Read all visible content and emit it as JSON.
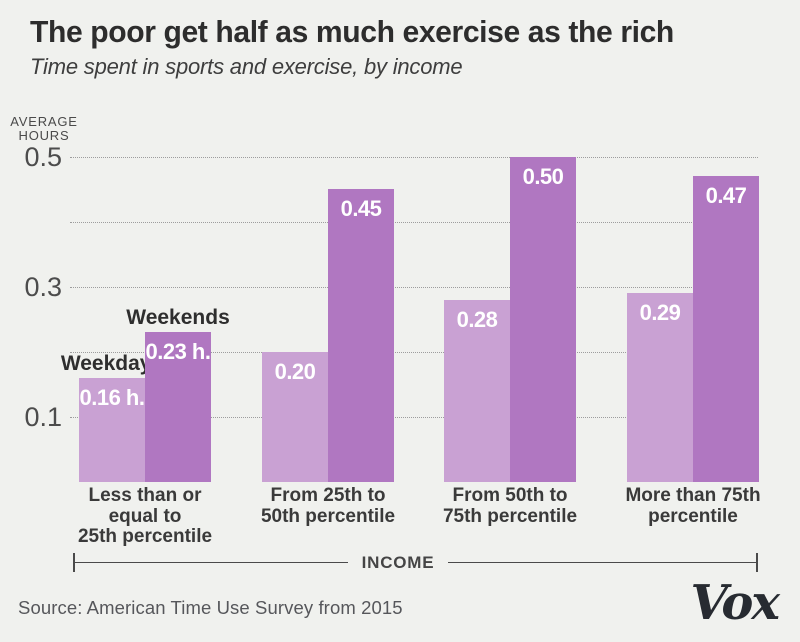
{
  "header": {
    "title": "The poor get half as much exercise as the rich",
    "subtitle": "Time spent in sports and exercise, by income"
  },
  "chart_data": {
    "type": "bar",
    "title": "The poor get half as much exercise as the rich",
    "subtitle": "Time spent in sports and exercise, by income",
    "ylabel": "AVERAGE HOURS",
    "ylabel_lines": [
      "AVERAGE",
      "HOURS"
    ],
    "xlabel": "INCOME",
    "ylim": [
      0,
      0.5
    ],
    "yticks_labeled": [
      0.5,
      0.3,
      0.1
    ],
    "gridlines": [
      0.1,
      0.2,
      0.3,
      0.4,
      0.5
    ],
    "grid_style": "dotted",
    "legend_position": "above-first-group-bars",
    "categories": [
      "Less than or equal to 25th percentile",
      "From 25th to 50th percentile",
      "From 50th to 75th percentile",
      "More than 75th percentile"
    ],
    "categories_lines": [
      [
        "Less than or",
        "equal to",
        "25th percentile"
      ],
      [
        "From 25th to",
        "50th percentile"
      ],
      [
        "From 50th to",
        "75th percentile"
      ],
      [
        "More than 75th",
        "percentile"
      ]
    ],
    "series": [
      {
        "name": "Weekdays",
        "values": [
          0.16,
          0.2,
          0.28,
          0.29
        ],
        "labels": [
          "0.16 h.",
          "0.20",
          "0.28",
          "0.29"
        ],
        "color": "#c9a1d3"
      },
      {
        "name": "Weekends",
        "values": [
          0.23,
          0.45,
          0.5,
          0.47
        ],
        "labels": [
          "0.23 h.",
          "0.45",
          "0.50",
          "0.47"
        ],
        "color": "#b077c1"
      }
    ]
  },
  "colors": {
    "background": "#f0f1ee",
    "title_text": "#2d2d2d",
    "axis_text": "#4a4a4a",
    "bar_value_text": "#ffffff",
    "weekdays_bar": "#c9a1d3",
    "weekends_bar": "#b077c1"
  },
  "footer": {
    "source": "Source: American Time Use Survey from 2015",
    "logo_text": "Vox"
  }
}
